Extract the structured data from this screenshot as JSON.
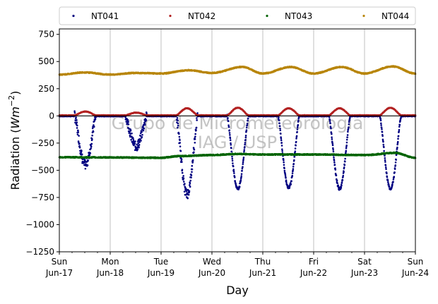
{
  "chart_data": {
    "type": "scatter",
    "title": "",
    "xlabel": "Day",
    "ylabel_main": "Radiation (",
    "ylabel_unit": "Wm",
    "ylabel_exp": "−2",
    "ylabel_close": ")",
    "ylim": [
      -1250,
      800
    ],
    "xlim": [
      0,
      7
    ],
    "yticks": [
      {
        "value": 750,
        "label": "750"
      },
      {
        "value": 500,
        "label": "500"
      },
      {
        "value": 250,
        "label": "250"
      },
      {
        "value": 0,
        "label": "0"
      },
      {
        "value": -250,
        "label": "−250"
      },
      {
        "value": -500,
        "label": "−500"
      },
      {
        "value": -750,
        "label": "−750"
      },
      {
        "value": -1000,
        "label": "−1000"
      },
      {
        "value": -1250,
        "label": "−1250"
      }
    ],
    "xticks": [
      {
        "value": 0,
        "day": "Sun",
        "date": "Jun-17"
      },
      {
        "value": 1,
        "day": "Mon",
        "date": "Jun-18"
      },
      {
        "value": 2,
        "day": "Tue",
        "date": "Jun-19"
      },
      {
        "value": 3,
        "day": "Wed",
        "date": "Jun-20"
      },
      {
        "value": 4,
        "day": "Thu",
        "date": "Jun-21"
      },
      {
        "value": 5,
        "day": "Fri",
        "date": "Jun-22"
      },
      {
        "value": 6,
        "day": "Sat",
        "date": "Jun-23"
      },
      {
        "value": 7,
        "day": "Sun",
        "date": "Jun-24"
      }
    ],
    "grid": "vertical",
    "legend_position": "top",
    "legend_columns": 4,
    "watermark": [
      "Grupo de Micrometeorologia",
      "IAG / USP"
    ],
    "series": [
      {
        "name": "NT041",
        "color": "#000080",
        "baseline": -2,
        "dips": [
          {
            "day": 0,
            "peak": -450
          },
          {
            "day": 1,
            "peak": -280
          },
          {
            "day": 2,
            "peak": -720
          },
          {
            "day": 3,
            "peak": -670
          },
          {
            "day": 4,
            "peak": -660
          },
          {
            "day": 5,
            "peak": -670
          },
          {
            "day": 6,
            "peak": -670
          }
        ]
      },
      {
        "name": "NT042",
        "color": "#b22222",
        "baseline": 5,
        "bumps": [
          {
            "day": 0,
            "peak": 40
          },
          {
            "day": 1,
            "peak": 30
          },
          {
            "day": 2,
            "peak": 70
          },
          {
            "day": 3,
            "peak": 75
          },
          {
            "day": 4,
            "peak": 70
          },
          {
            "day": 5,
            "peak": 70
          },
          {
            "day": 6,
            "peak": 75
          }
        ]
      },
      {
        "name": "NT043",
        "color": "#006400",
        "baseline": -380,
        "segments": [
          [
            0,
            -380
          ],
          [
            1,
            -382
          ],
          [
            2,
            -385
          ],
          [
            2.35,
            -370
          ],
          [
            3,
            -360
          ],
          [
            3.5,
            -350
          ],
          [
            4,
            -355
          ],
          [
            5,
            -355
          ],
          [
            6,
            -360
          ],
          [
            6.6,
            -340
          ],
          [
            7,
            -385
          ]
        ]
      },
      {
        "name": "NT044",
        "color": "#b8860b",
        "baseline": 380,
        "segments": [
          [
            0,
            380
          ],
          [
            0.5,
            400
          ],
          [
            1,
            380
          ],
          [
            1.5,
            395
          ],
          [
            2,
            390
          ],
          [
            2.55,
            420
          ],
          [
            3,
            395
          ],
          [
            3.6,
            450
          ],
          [
            4,
            390
          ],
          [
            4.55,
            450
          ],
          [
            5,
            390
          ],
          [
            5.55,
            450
          ],
          [
            6,
            390
          ],
          [
            6.55,
            455
          ],
          [
            7,
            390
          ]
        ]
      }
    ]
  }
}
